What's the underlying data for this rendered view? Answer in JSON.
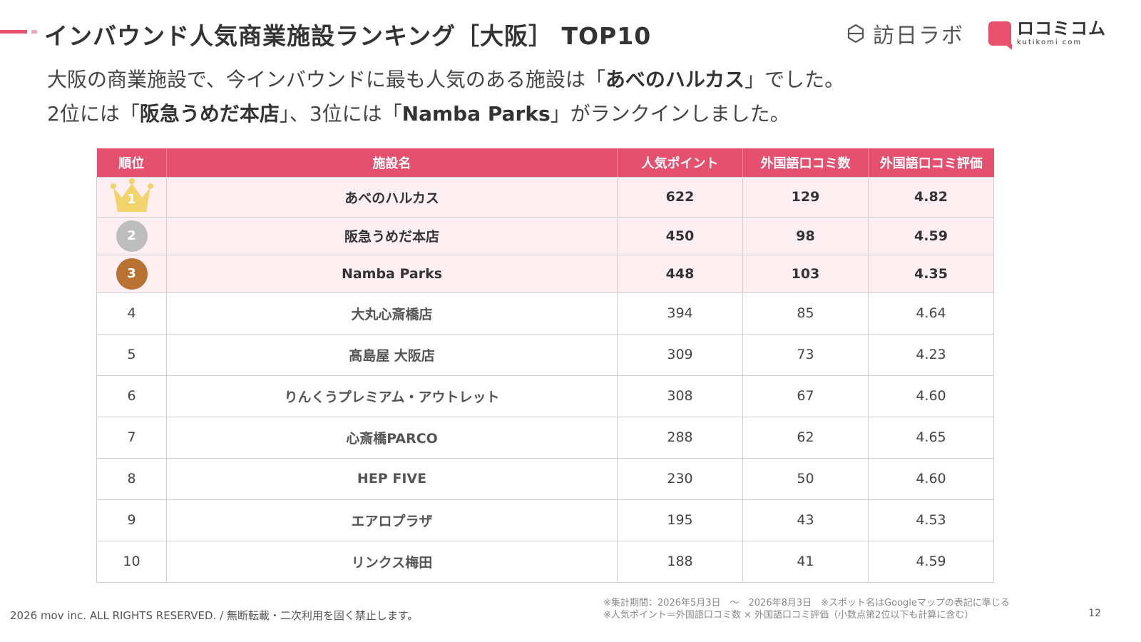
{
  "header": {
    "title": "インバウンド人気商業施設ランキング［大阪］ TOP10",
    "logo_houjin": "訪日ラボ",
    "logo_kuchikomi": "ロコミコム",
    "logo_kuchikomi_sub": "kutikomi com"
  },
  "intro": {
    "line1_a": "大阪の商業施設で、今インバウンドに最も人気のある施設は「",
    "line1_b": "あべのハルカス",
    "line1_c": "」でした。",
    "line2_a": "2位には「",
    "line2_b": "阪急うめだ本店",
    "line2_c": "」、3位には「",
    "line2_d": "Namba Parks",
    "line2_e": "」がランクインしました。"
  },
  "table": {
    "headers": [
      "順位",
      "施設名",
      "人気ポイント",
      "外国語口コミ数",
      "外国語口コミ評価"
    ],
    "rows": [
      {
        "rank": "1",
        "name": "あべのハルカス",
        "points": "622",
        "reviews": "129",
        "rating": "4.82"
      },
      {
        "rank": "2",
        "name": "阪急うめだ本店",
        "points": "450",
        "reviews": "98",
        "rating": "4.59"
      },
      {
        "rank": "3",
        "name": "Namba Parks",
        "points": "448",
        "reviews": "103",
        "rating": "4.35"
      },
      {
        "rank": "4",
        "name": "大丸心斎橋店",
        "points": "394",
        "reviews": "85",
        "rating": "4.64"
      },
      {
        "rank": "5",
        "name": "髙島屋 大阪店",
        "points": "309",
        "reviews": "73",
        "rating": "4.23"
      },
      {
        "rank": "6",
        "name": "りんくうプレミアム・アウトレット",
        "points": "308",
        "reviews": "67",
        "rating": "4.60"
      },
      {
        "rank": "7",
        "name": "心斎橋PARCO",
        "points": "288",
        "reviews": "62",
        "rating": "4.65"
      },
      {
        "rank": "8",
        "name": "HEP FIVE",
        "points": "230",
        "reviews": "50",
        "rating": "4.60"
      },
      {
        "rank": "9",
        "name": "エアロプラザ",
        "points": "195",
        "reviews": "43",
        "rating": "4.53"
      },
      {
        "rank": "10",
        "name": "リンクス梅田",
        "points": "188",
        "reviews": "41",
        "rating": "4.59"
      }
    ]
  },
  "footer": {
    "copyright": "2026 mov inc. ALL RIGHTS RESERVED. / 無断転載・二次利用を固く禁止します。",
    "note1": "※集計期間：2026年5月3日　～　2026年8月3日　※スポット名はGoogleマップの表記に準じる",
    "note2": "※人気ポイント＝外国語口コミ数 × 外国語口コミ評価（小数点第2位以下も計算に含む）",
    "page_number": "12"
  },
  "colors": {
    "accent": "#e4506e",
    "top_row_bg": "#fdeff2",
    "gold": "#f3d36b",
    "silver": "#bdbdbd",
    "bronze": "#b87333"
  }
}
